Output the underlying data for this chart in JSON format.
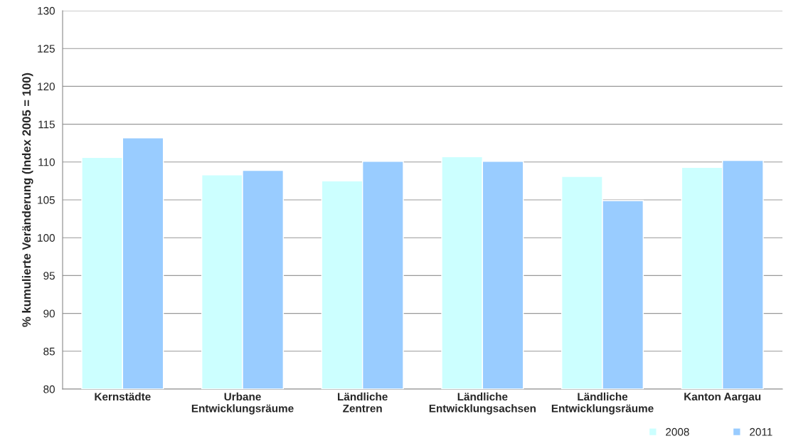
{
  "chart_data": {
    "type": "bar",
    "ylabel": "% kumulierte Veränderung (Index 2005 = 100)",
    "categories": [
      "Kernstädte",
      "Urbane\nEntwicklungsräume",
      "Ländliche\nZentren",
      "Ländliche\nEntwicklungsachsen",
      "Ländliche\nEntwicklungsräume",
      "Kanton Aargau"
    ],
    "series": [
      {
        "name": "2008",
        "color": "#ccffff",
        "values": [
          110.6,
          108.3,
          107.5,
          110.7,
          108.1,
          109.3
        ]
      },
      {
        "name": "2011",
        "color": "#99ccff",
        "values": [
          113.2,
          108.9,
          110.1,
          110.1,
          104.9,
          110.2
        ]
      }
    ],
    "ylim": [
      80,
      130
    ],
    "yticks": [
      80,
      85,
      90,
      95,
      100,
      105,
      110,
      115,
      120,
      125,
      130
    ],
    "grid": "y",
    "legend": "bottom right"
  }
}
